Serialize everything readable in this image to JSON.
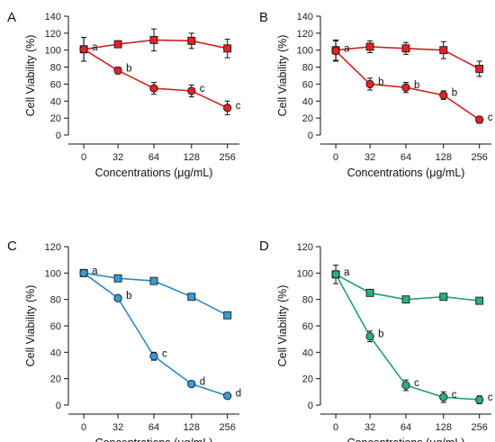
{
  "chart_data": [
    {
      "panel": "A",
      "type": "line",
      "categories": [
        "0",
        "32",
        "64",
        "128",
        "256"
      ],
      "xlabel": "Concentrations (μg/mL)",
      "ylabel": "Cell Viability (%)",
      "ylim": [
        0,
        140
      ],
      "yticks": [
        0,
        20,
        40,
        60,
        80,
        100,
        120,
        140
      ],
      "series": [
        {
          "marker": "square",
          "color": "#d42020",
          "values": [
            101,
            107,
            112,
            111,
            102
          ],
          "errors": [
            14,
            4,
            13,
            9,
            11
          ]
        },
        {
          "marker": "circle",
          "color": "#d42020",
          "values": [
            101,
            76,
            55,
            52,
            32
          ],
          "errors": [
            14,
            4,
            7,
            7,
            8
          ],
          "labels": [
            "a",
            "b",
            "",
            "c",
            "c"
          ]
        }
      ]
    },
    {
      "panel": "B",
      "type": "line",
      "categories": [
        "0",
        "32",
        "64",
        "128",
        "256"
      ],
      "xlabel": "Concentrations (μg/mL)",
      "ylabel": "Cell Viability (%)",
      "ylim": [
        0,
        140
      ],
      "yticks": [
        0,
        20,
        40,
        60,
        80,
        100,
        120,
        140
      ],
      "series": [
        {
          "marker": "square",
          "color": "#d42020",
          "values": [
            100,
            104,
            102,
            100,
            78
          ],
          "errors": [
            12,
            7,
            7,
            10,
            9
          ]
        },
        {
          "marker": "circle",
          "color": "#d42020",
          "values": [
            99,
            60,
            56,
            47,
            18
          ],
          "errors": [
            12,
            7,
            6,
            5,
            4
          ],
          "labels": [
            "a",
            "b",
            "b",
            "b",
            "c"
          ]
        }
      ]
    },
    {
      "panel": "C",
      "type": "line",
      "categories": [
        "0",
        "32",
        "64",
        "128",
        "256"
      ],
      "xlabel": "Concentrations (μg/mL)",
      "ylabel": "Cell Viability (%)",
      "ylim": [
        0,
        120
      ],
      "yticks": [
        0,
        20,
        40,
        60,
        80,
        100,
        120
      ],
      "series": [
        {
          "marker": "square",
          "color": "#2a8cc4",
          "values": [
            100,
            96,
            94,
            82,
            68
          ],
          "errors": [
            0,
            0,
            0,
            0,
            0
          ]
        },
        {
          "marker": "circle",
          "color": "#2a8cc4",
          "values": [
            100,
            81,
            37,
            16,
            7
          ],
          "errors": [
            0,
            0,
            3,
            0,
            0
          ],
          "labels": [
            "a",
            "b",
            "c",
            "d",
            "d"
          ]
        }
      ]
    },
    {
      "panel": "D",
      "type": "line",
      "categories": [
        "0",
        "32",
        "64",
        "128",
        "256"
      ],
      "xlabel": "Concentrations (μg/mL)",
      "ylabel": "Cell Viability (%)",
      "ylim": [
        0,
        120
      ],
      "yticks": [
        0,
        20,
        40,
        60,
        80,
        100,
        120
      ],
      "series": [
        {
          "marker": "square",
          "color": "#20a070",
          "values": [
            99,
            85,
            80,
            82,
            79
          ],
          "errors": [
            0,
            0,
            0,
            0,
            0
          ]
        },
        {
          "marker": "circle",
          "color": "#20a070",
          "values": [
            99,
            52,
            15,
            6,
            4
          ],
          "errors": [
            7,
            4,
            4,
            4,
            3
          ],
          "labels": [
            "a",
            "b",
            "c",
            "c",
            "c"
          ]
        }
      ]
    }
  ]
}
